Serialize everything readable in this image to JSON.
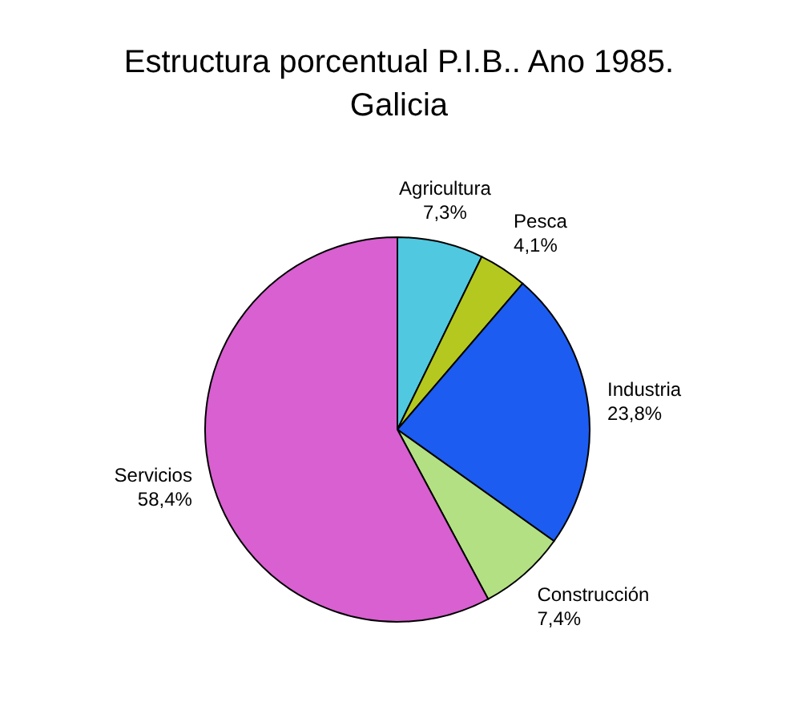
{
  "chart_data": {
    "type": "pie",
    "title": "Estructura porcentual P.I.B.. Ano 1985. Galicia",
    "categories": [
      "Agricultura",
      "Pesca",
      "Industria",
      "Construcción",
      "Servicios"
    ],
    "values": [
      7.3,
      4.1,
      23.8,
      7.4,
      58.4
    ],
    "colors": [
      "#50c8e0",
      "#b4c820",
      "#1c5cf0",
      "#b4e084",
      "#d860d0"
    ],
    "value_labels": [
      "7,3%",
      "4,1%",
      "23,8%",
      "7,4%",
      "58,4%"
    ]
  }
}
